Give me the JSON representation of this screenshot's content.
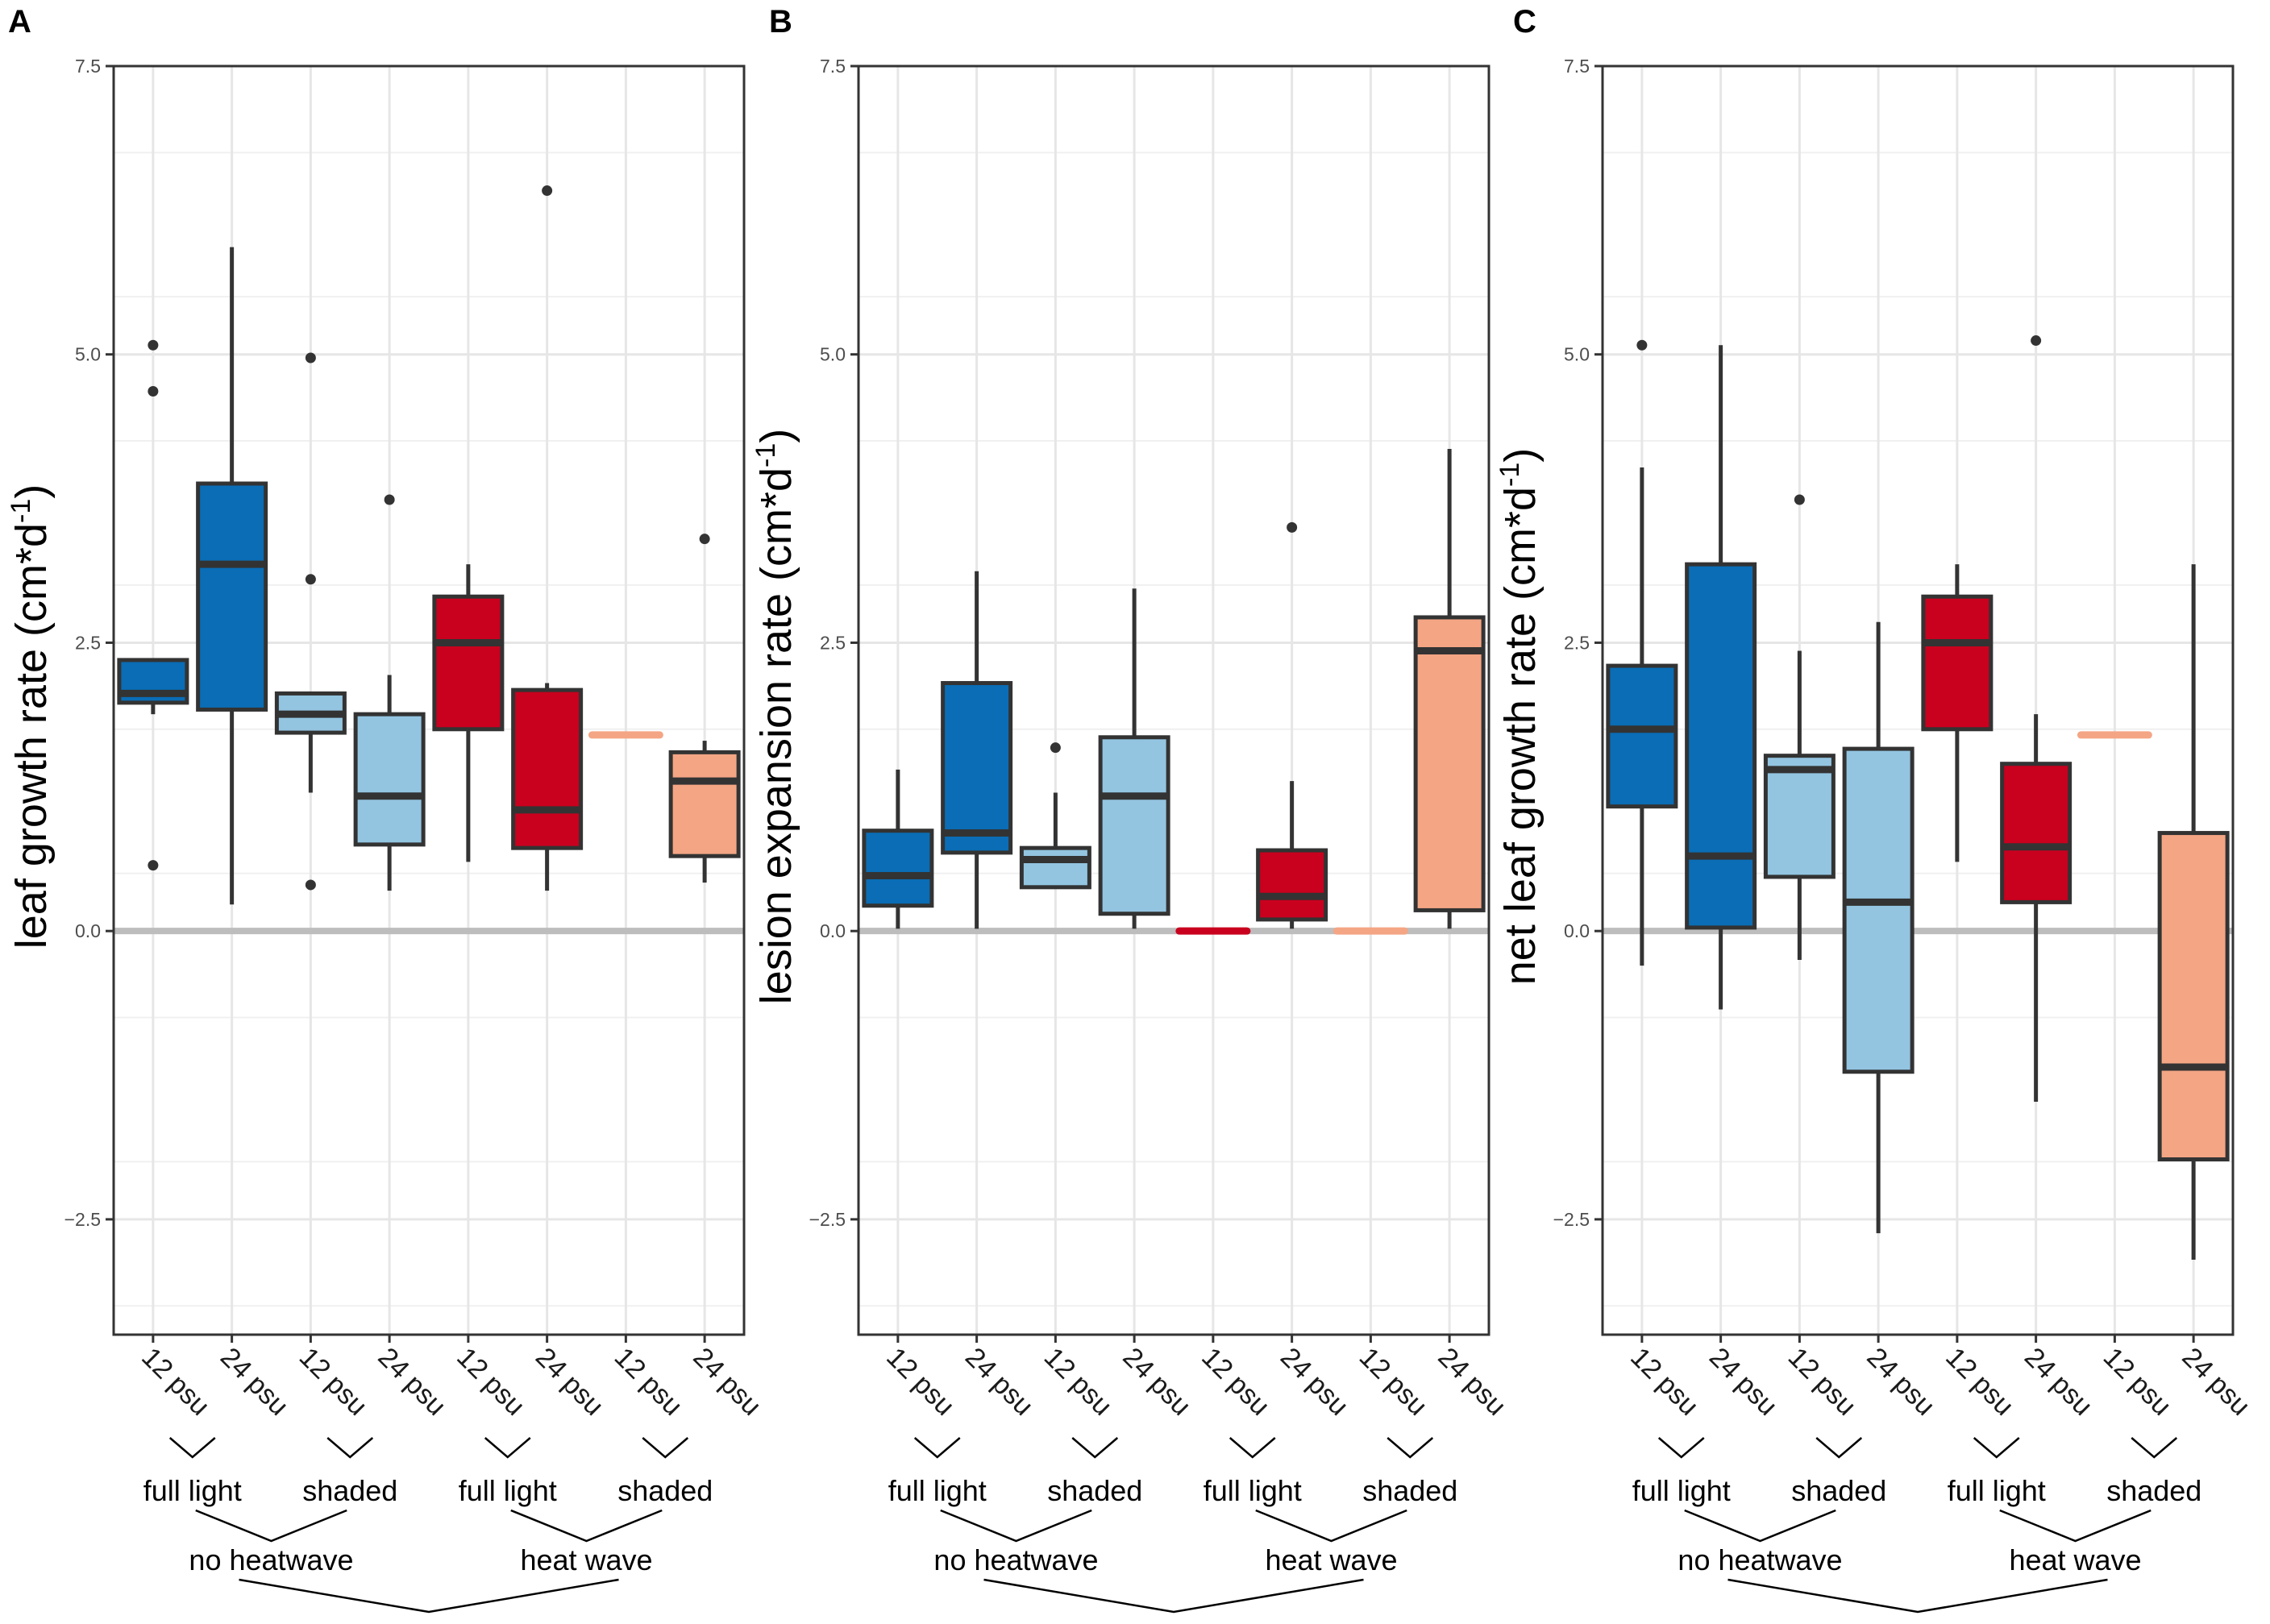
{
  "figure": {
    "x_categories": [
      "12 psu",
      "24 psu",
      "12 psu",
      "24 psu",
      "12 psu",
      "24 psu",
      "12 psu",
      "24 psu"
    ],
    "light_groups": [
      "full light",
      "shaded",
      "full light",
      "shaded"
    ],
    "heat_groups": [
      "no heatwave",
      "heat wave"
    ],
    "y_ticks": [
      -2.5,
      0.0,
      2.5,
      5.0,
      7.5
    ],
    "y_tick_labels": [
      "−2.5",
      "0.0",
      "2.5",
      "5.0",
      "7.5"
    ],
    "box_colors": [
      "#0a6db5",
      "#0a6db5",
      "#93c5e1",
      "#93c5e1",
      "#c9001e",
      "#c9001e",
      "#f4a584",
      "#f4a584"
    ]
  },
  "chart_data": [
    {
      "type": "box",
      "panel": "A",
      "ylabel": "leaf growth rate (cm*d",
      "ylabel_superscript": "-1",
      "ylabel_suffix": ")",
      "ylim": [
        -3.5,
        7.5
      ],
      "categories": [
        "12 psu",
        "24 psu",
        "12 psu",
        "24 psu",
        "12 psu",
        "24 psu",
        "12 psu",
        "24 psu"
      ],
      "boxes": [
        {
          "min": 1.88,
          "q1": 1.98,
          "median": 2.06,
          "q3": 2.35,
          "max": 2.35,
          "outliers": [
            5.08,
            4.68,
            0.57
          ]
        },
        {
          "min": 0.23,
          "q1": 1.92,
          "median": 3.18,
          "q3": 3.88,
          "max": 5.93,
          "outliers": []
        },
        {
          "min": 1.2,
          "q1": 1.72,
          "median": 1.88,
          "q3": 2.06,
          "max": 2.06,
          "outliers": [
            4.97,
            3.05,
            0.4
          ]
        },
        {
          "min": 0.35,
          "q1": 0.75,
          "median": 1.17,
          "q3": 1.88,
          "max": 2.22,
          "outliers": [
            3.74
          ]
        },
        {
          "min": 0.6,
          "q1": 1.75,
          "median": 2.5,
          "q3": 2.9,
          "max": 3.18,
          "outliers": []
        },
        {
          "min": 0.35,
          "q1": 0.72,
          "median": 1.05,
          "q3": 2.09,
          "max": 2.15,
          "outliers": [
            6.42
          ]
        },
        {
          "min": 1.7,
          "q1": 1.7,
          "median": 1.7,
          "q3": 1.7,
          "max": 1.7,
          "outliers": []
        },
        {
          "min": 0.42,
          "q1": 0.65,
          "median": 1.3,
          "q3": 1.55,
          "max": 1.65,
          "outliers": [
            3.4
          ]
        }
      ]
    },
    {
      "type": "box",
      "panel": "B",
      "ylabel": "lesion expansion rate (cm*d",
      "ylabel_superscript": "-1",
      "ylabel_suffix": ")",
      "ylim": [
        -3.5,
        7.5
      ],
      "categories": [
        "12 psu",
        "24 psu",
        "12 psu",
        "24 psu",
        "12 psu",
        "24 psu",
        "12 psu",
        "24 psu"
      ],
      "boxes": [
        {
          "min": 0.02,
          "q1": 0.22,
          "median": 0.48,
          "q3": 0.87,
          "max": 1.4,
          "outliers": []
        },
        {
          "min": 0.02,
          "q1": 0.68,
          "median": 0.85,
          "q3": 2.15,
          "max": 3.12,
          "outliers": []
        },
        {
          "min": 0.38,
          "q1": 0.38,
          "median": 0.62,
          "q3": 0.72,
          "max": 1.2,
          "outliers": [
            1.59
          ]
        },
        {
          "min": 0.02,
          "q1": 0.15,
          "median": 1.17,
          "q3": 1.68,
          "max": 2.97,
          "outliers": []
        },
        {
          "min": 0.0,
          "q1": 0.0,
          "median": 0.0,
          "q3": 0.0,
          "max": 0.0,
          "outliers": []
        },
        {
          "min": 0.02,
          "q1": 0.1,
          "median": 0.3,
          "q3": 0.7,
          "max": 1.3,
          "outliers": [
            3.5
          ]
        },
        {
          "min": 0.0,
          "q1": 0.0,
          "median": 0.0,
          "q3": 0.0,
          "max": 0.0,
          "outliers": []
        },
        {
          "min": 0.02,
          "q1": 0.18,
          "median": 2.43,
          "q3": 2.72,
          "max": 4.18,
          "outliers": []
        }
      ]
    },
    {
      "type": "box",
      "panel": "C",
      "ylabel": "net leaf growth rate (cm*d",
      "ylabel_superscript": "-1",
      "ylabel_suffix": ")",
      "ylim": [
        -3.5,
        7.5
      ],
      "categories": [
        "12 psu",
        "24 psu",
        "12 psu",
        "24 psu",
        "12 psu",
        "24 psu",
        "12 psu",
        "24 psu"
      ],
      "boxes": [
        {
          "min": -0.3,
          "q1": 1.08,
          "median": 1.75,
          "q3": 2.3,
          "max": 4.02,
          "outliers": [
            5.08
          ]
        },
        {
          "min": -0.68,
          "q1": 0.03,
          "median": 0.65,
          "q3": 3.18,
          "max": 5.08,
          "outliers": []
        },
        {
          "min": -0.25,
          "q1": 0.47,
          "median": 1.4,
          "q3": 1.52,
          "max": 2.43,
          "outliers": [
            3.74
          ]
        },
        {
          "min": -2.62,
          "q1": -1.22,
          "median": 0.25,
          "q3": 1.58,
          "max": 2.68,
          "outliers": []
        },
        {
          "min": 0.6,
          "q1": 1.75,
          "median": 2.5,
          "q3": 2.9,
          "max": 3.18,
          "outliers": []
        },
        {
          "min": -1.48,
          "q1": 0.25,
          "median": 0.73,
          "q3": 1.45,
          "max": 1.88,
          "outliers": [
            5.12
          ]
        },
        {
          "min": 1.7,
          "q1": 1.7,
          "median": 1.7,
          "q3": 1.7,
          "max": 1.7,
          "outliers": []
        },
        {
          "min": -2.85,
          "q1": -1.98,
          "median": -1.18,
          "q3": 0.85,
          "max": 3.18,
          "outliers": []
        }
      ]
    }
  ]
}
